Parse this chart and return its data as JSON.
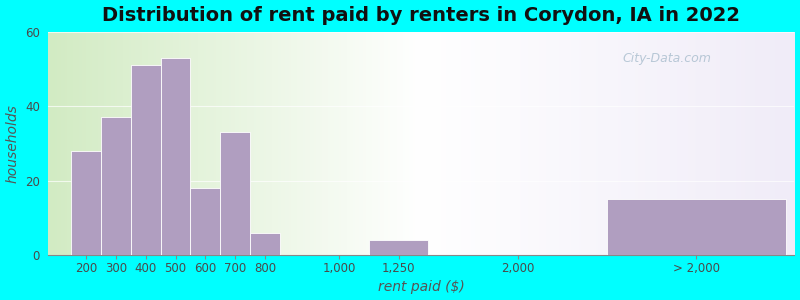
{
  "title": "Distribution of rent paid by renters in Corydon, IA in 2022",
  "xlabel": "rent paid ($)",
  "ylabel": "households",
  "background_color": "#00FFFF",
  "bar_color": "#b09ec0",
  "values": [
    28,
    37,
    51,
    53,
    18,
    33,
    6,
    0,
    4,
    0,
    15
  ],
  "ylim": [
    0,
    60
  ],
  "yticks": [
    0,
    20,
    40,
    60
  ],
  "title_fontsize": 14,
  "axis_label_fontsize": 10,
  "tick_label_fontsize": 8.5,
  "watermark": "City-Data.com",
  "tick_labels": [
    "200",
    "300",
    "400",
    "500",
    "600",
    "700",
    "800",
    "1,000",
    "1,250",
    "2,000",
    "> 2,000"
  ],
  "bar_positions": [
    0,
    1,
    2,
    3,
    4,
    5,
    6,
    8,
    10,
    14,
    18
  ],
  "bar_widths": [
    1,
    1,
    1,
    1,
    1,
    1,
    1,
    2,
    2,
    2,
    6
  ]
}
